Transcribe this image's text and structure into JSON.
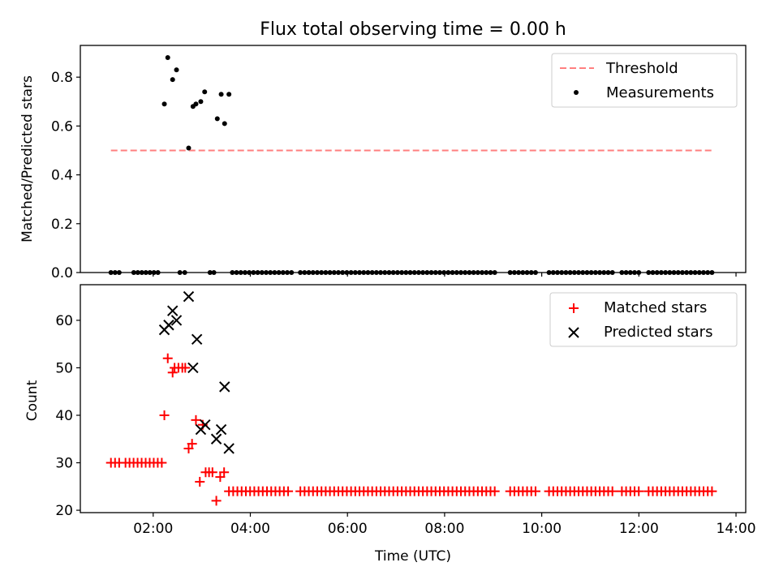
{
  "chart_data": [
    {
      "type": "scatter",
      "title": "Flux total observing time = 0.00 h",
      "xlabel": "",
      "ylabel": "Matched/Predicted stars",
      "xlim": [
        0.5,
        14.2
      ],
      "ylim": [
        0.0,
        0.93
      ],
      "yticks": [
        0.0,
        0.2,
        0.4,
        0.6,
        0.8
      ],
      "ytick_labels": [
        "0.0",
        "0.2",
        "0.4",
        "0.6",
        "0.8"
      ],
      "xticks": [
        2,
        4,
        6,
        8,
        10,
        12,
        14
      ],
      "legend_position": "top-right",
      "threshold": {
        "name": "Threshold",
        "value": 0.5,
        "x_range": [
          1.13,
          13.55
        ],
        "color": "#ff7f7f"
      },
      "measurements": {
        "name": "Measurements",
        "color": "#000000",
        "points": [
          [
            2.23,
            0.69
          ],
          [
            2.3,
            0.88
          ],
          [
            2.4,
            0.79
          ],
          [
            2.48,
            0.83
          ],
          [
            2.73,
            0.51
          ],
          [
            2.82,
            0.68
          ],
          [
            2.88,
            0.69
          ],
          [
            2.98,
            0.7
          ],
          [
            3.06,
            0.74
          ],
          [
            3.32,
            0.63
          ],
          [
            3.4,
            0.73
          ],
          [
            3.47,
            0.61
          ],
          [
            3.56,
            0.73
          ]
        ],
        "zero_series": [
          {
            "start": 1.13,
            "end": 1.33,
            "step": 0.085
          },
          {
            "start": 1.6,
            "end": 2.18,
            "step": 0.083
          },
          {
            "start": 2.55,
            "end": 2.66,
            "step": 0.1
          },
          {
            "start": 3.17,
            "end": 3.25,
            "step": 0.08
          },
          {
            "start": 3.63,
            "end": 4.85,
            "step": 0.087
          },
          {
            "start": 5.03,
            "end": 9.1,
            "step": 0.087
          },
          {
            "start": 9.35,
            "end": 9.95,
            "step": 0.087
          },
          {
            "start": 10.15,
            "end": 11.5,
            "step": 0.087
          },
          {
            "start": 11.65,
            "end": 12.05,
            "step": 0.087
          },
          {
            "start": 12.2,
            "end": 13.55,
            "step": 0.087
          }
        ]
      }
    },
    {
      "type": "scatter",
      "title": "",
      "xlabel": "Time (UTC)",
      "ylabel": "Count",
      "xlim": [
        0.5,
        14.2
      ],
      "ylim": [
        19.5,
        67.5
      ],
      "yticks": [
        20,
        30,
        40,
        50,
        60
      ],
      "ytick_labels": [
        "20",
        "30",
        "40",
        "50",
        "60"
      ],
      "xticks": [
        2,
        4,
        6,
        8,
        10,
        12,
        14
      ],
      "xtick_labels": [
        "02:00",
        "04:00",
        "06:00",
        "08:00",
        "10:00",
        "12:00",
        "14:00"
      ],
      "legend_position": "top-right",
      "series": [
        {
          "name": "Matched stars",
          "marker": "plus",
          "color": "#ff0000",
          "points": [
            [
              2.23,
              40
            ],
            [
              2.3,
              52
            ],
            [
              2.4,
              49
            ],
            [
              2.44,
              50
            ],
            [
              2.52,
              50
            ],
            [
              2.6,
              50
            ],
            [
              2.66,
              50
            ],
            [
              2.73,
              33
            ],
            [
              2.8,
              34
            ],
            [
              2.88,
              39
            ],
            [
              2.96,
              26
            ],
            [
              3.02,
              38
            ],
            [
              3.08,
              28
            ],
            [
              3.15,
              28
            ],
            [
              3.22,
              28
            ],
            [
              3.3,
              22
            ],
            [
              3.38,
              27
            ],
            [
              3.46,
              28
            ]
          ],
          "segments": [
            {
              "start": 1.13,
              "end": 1.33,
              "step": 0.085,
              "value": 30
            },
            {
              "start": 1.43,
              "end": 2.18,
              "step": 0.083,
              "value": 30
            },
            {
              "start": 3.56,
              "end": 4.85,
              "step": 0.087,
              "value": 24
            },
            {
              "start": 5.03,
              "end": 9.1,
              "step": 0.087,
              "value": 24
            },
            {
              "start": 9.35,
              "end": 9.95,
              "step": 0.087,
              "value": 24
            },
            {
              "start": 10.15,
              "end": 11.5,
              "step": 0.087,
              "value": 24
            },
            {
              "start": 11.65,
              "end": 12.05,
              "step": 0.087,
              "value": 24
            },
            {
              "start": 12.2,
              "end": 13.55,
              "step": 0.087,
              "value": 24
            }
          ]
        },
        {
          "name": "Predicted stars",
          "marker": "x",
          "color": "#000000",
          "points": [
            [
              2.23,
              58
            ],
            [
              2.32,
              59
            ],
            [
              2.4,
              62
            ],
            [
              2.48,
              60
            ],
            [
              2.73,
              65
            ],
            [
              2.82,
              50
            ],
            [
              2.9,
              56
            ],
            [
              2.98,
              37
            ],
            [
              3.07,
              38
            ],
            [
              3.3,
              35
            ],
            [
              3.4,
              37
            ],
            [
              3.47,
              46
            ],
            [
              3.56,
              33
            ]
          ]
        }
      ]
    }
  ]
}
